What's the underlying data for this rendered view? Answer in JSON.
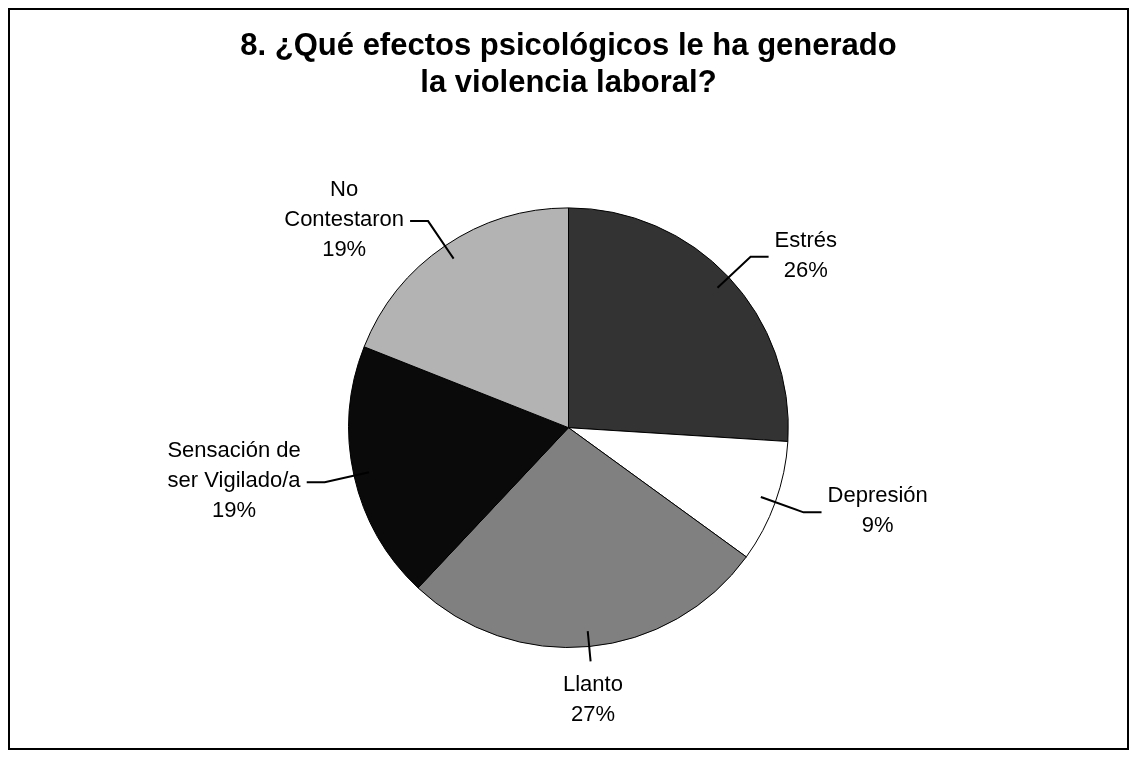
{
  "chart_data": {
    "type": "pie",
    "title": "8. ¿Qué efectos psicológicos le ha generado la violencia laboral?",
    "categories": [
      "Estrés",
      "Depresión",
      "Llanto",
      "Sensación de ser Vigilado/a",
      "No Contestaron"
    ],
    "values": [
      26,
      9,
      27,
      19,
      19
    ],
    "colors": [
      "#333333",
      "#ffffff",
      "#808080",
      "#0a0a0a",
      "#b3b3b3"
    ],
    "value_labels": [
      "26%",
      "9%",
      "27%",
      "19%",
      "19%"
    ],
    "legend": false
  }
}
